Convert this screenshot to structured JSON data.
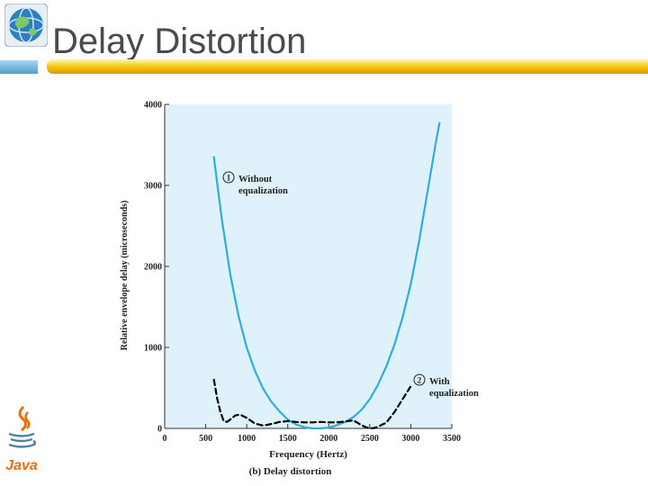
{
  "slide": {
    "title": "Delay Distortion"
  },
  "logos": {
    "top_left": "globe-logo-icon",
    "bottom_left": "java-logo-icon",
    "java_text": "Java"
  },
  "colors": {
    "plot_background": "#dff1fb",
    "curve_without": "#2eaed8",
    "curve_with": "#000000",
    "title_bar_gold": "#f5c400",
    "title_bar_blue": "#4f9ed0",
    "title_text": "#4a4a4a"
  },
  "chart_data": {
    "type": "line",
    "title": "",
    "caption": "(b) Delay distortion",
    "xlabel": "Frequency (Hertz)",
    "ylabel": "Relative envelope delay (microseconds)",
    "xlim": [
      0,
      3500
    ],
    "ylim": [
      0,
      4000
    ],
    "xticks": [
      0,
      500,
      1000,
      1500,
      2000,
      2500,
      3000,
      3500
    ],
    "yticks": [
      0,
      1000,
      2000,
      3000,
      4000
    ],
    "grid": false,
    "series": [
      {
        "name": "Without equalization",
        "label_number": "1",
        "label_lines": [
          "Without",
          "equalization"
        ],
        "style": "solid",
        "x": [
          600,
          650,
          700,
          800,
          900,
          1000,
          1100,
          1200,
          1300,
          1400,
          1500,
          1600,
          1700,
          1800,
          1900,
          2000,
          2100,
          2200,
          2300,
          2400,
          2500,
          2600,
          2700,
          2800,
          2900,
          3000,
          3100,
          3200,
          3300,
          3350
        ],
        "y": [
          3350,
          2950,
          2560,
          1900,
          1390,
          1000,
          710,
          490,
          330,
          210,
          110,
          50,
          15,
          0,
          0,
          10,
          40,
          80,
          140,
          230,
          360,
          540,
          760,
          1030,
          1370,
          1780,
          2300,
          2900,
          3500,
          3770
        ]
      },
      {
        "name": "With equalization",
        "label_number": "2",
        "label_lines": [
          "With",
          "equalization"
        ],
        "style": "dashed",
        "x": [
          600,
          640,
          680,
          720,
          760,
          800,
          860,
          920,
          1000,
          1100,
          1200,
          1300,
          1400,
          1500,
          1600,
          1700,
          1800,
          1900,
          2000,
          2100,
          2200,
          2300,
          2400,
          2450,
          2500,
          2550,
          2600,
          2650,
          2700,
          2800,
          2900,
          3000
        ],
        "y": [
          600,
          370,
          200,
          90,
          80,
          110,
          160,
          170,
          130,
          60,
          35,
          55,
          80,
          90,
          80,
          75,
          75,
          80,
          75,
          75,
          85,
          100,
          40,
          15,
          0,
          5,
          20,
          45,
          70,
          200,
          360,
          520
        ]
      }
    ]
  }
}
